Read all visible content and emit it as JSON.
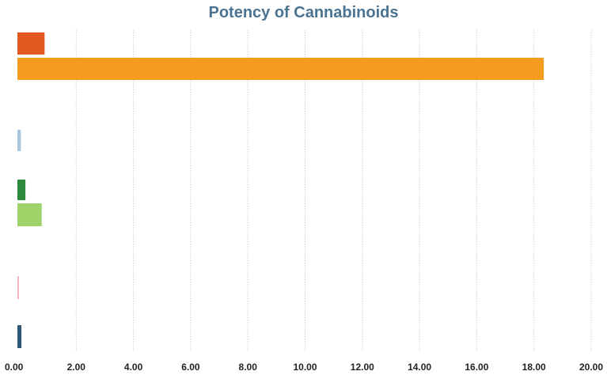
{
  "chart_data": {
    "type": "bar",
    "orientation": "horizontal",
    "title": "Potency of Cannabinoids",
    "xlabel": "",
    "ylabel": "",
    "xlim": [
      0,
      20
    ],
    "x_ticks": [
      "0.00",
      "2.00",
      "4.00",
      "6.00",
      "8.00",
      "10.00",
      "12.00",
      "14.00",
      "16.00",
      "18.00",
      "20.00"
    ],
    "grid": true,
    "legend": "none",
    "bars": [
      {
        "value": 0.95,
        "color": "#e35a21"
      },
      {
        "value": 18.4,
        "color": "#f39c1e"
      },
      {
        "value": 0.12,
        "color": "#a9c4dc"
      },
      {
        "value": 0.28,
        "color": "#2e8b3e"
      },
      {
        "value": 0.85,
        "color": "#9ed36a"
      },
      {
        "value": 0.05,
        "color": "#f2aab9"
      },
      {
        "value": 0.14,
        "color": "#2d5878"
      }
    ]
  }
}
